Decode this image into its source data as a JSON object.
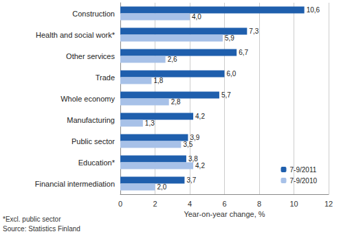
{
  "chart_data": {
    "type": "bar",
    "orientation": "horizontal",
    "categories": [
      "Construction",
      "Health and social work*",
      "Other services",
      "Trade",
      "Whole economy",
      "Manufacturing",
      "Public sector",
      "Education*",
      "Financial intermediation"
    ],
    "series": [
      {
        "name": "7-9/2011",
        "color": "#1f5fad",
        "values": [
          10.6,
          7.3,
          6.7,
          6.0,
          5.7,
          4.2,
          3.9,
          3.8,
          3.7
        ],
        "value_labels": [
          "10,6",
          "7,3",
          "6,7",
          "6,0",
          "5,7",
          "4,2",
          "3,9",
          "3,8",
          "3,7"
        ]
      },
      {
        "name": "7-9/2010",
        "color": "#a7c1e8",
        "values": [
          4.0,
          5.9,
          2.6,
          1.8,
          2.8,
          1.3,
          3.5,
          4.2,
          2.0
        ],
        "value_labels": [
          "4,0",
          "5,9",
          "2,6",
          "1,8",
          "2,8",
          "1,3",
          "3,5",
          "4,2",
          "2,0"
        ]
      }
    ],
    "x_label": "Year-on-year change, %",
    "xlim": [
      0,
      12
    ],
    "xticks": [
      0,
      2,
      4,
      6,
      8,
      10,
      12
    ],
    "grid": true,
    "legend": "lower right",
    "data_labels": true,
    "annotations": [
      "*Excl. public sector",
      "Source: Statistics Finland"
    ]
  }
}
